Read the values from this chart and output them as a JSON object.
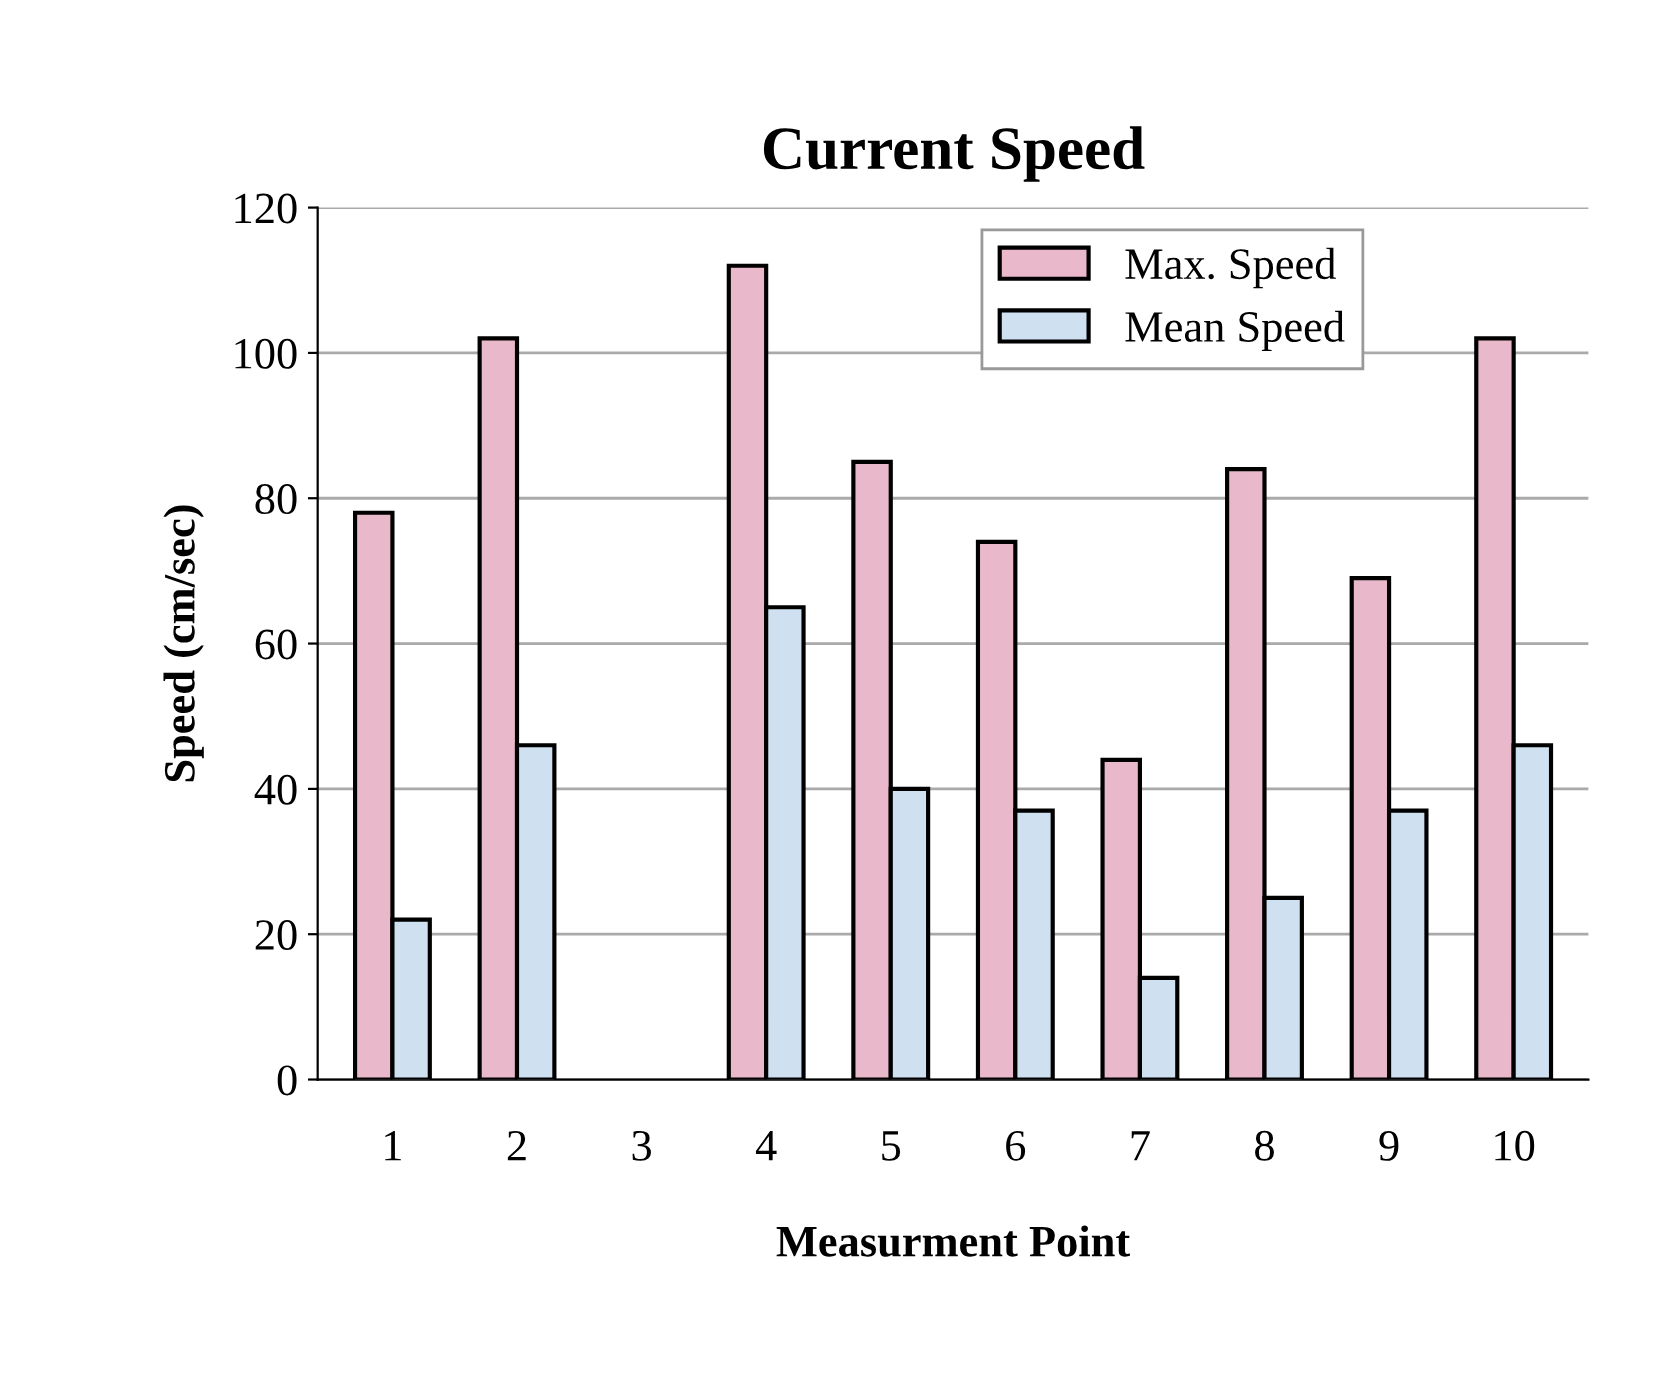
{
  "chart_data": {
    "type": "bar",
    "title": "Current Speed",
    "xlabel": "Measurment Point",
    "ylabel": "Speed (cm/sec)",
    "categories": [
      "1",
      "2",
      "3",
      "4",
      "5",
      "6",
      "7",
      "8",
      "9",
      "10"
    ],
    "series": [
      {
        "name": "Max. Speed",
        "color": "#eab8cb",
        "values": [
          78,
          102,
          null,
          112,
          85,
          74,
          44,
          84,
          69,
          102
        ]
      },
      {
        "name": "Mean Speed",
        "color": "#cfe1f1",
        "values": [
          22,
          46,
          null,
          65,
          40,
          37,
          14,
          25,
          37,
          46
        ]
      }
    ],
    "ylim": [
      0,
      120
    ],
    "yticks": [
      0,
      20,
      40,
      60,
      80,
      100,
      120
    ],
    "grid": "y",
    "legend": "top right"
  }
}
